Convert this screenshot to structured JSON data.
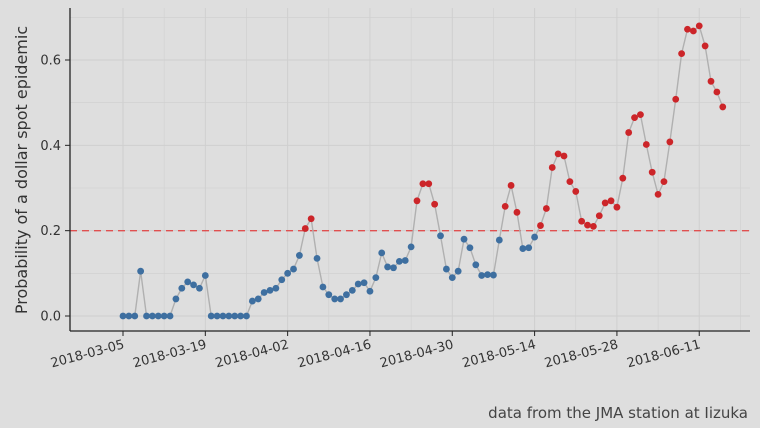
{
  "chart_data": {
    "type": "line",
    "title": "",
    "xlabel": "",
    "ylabel": "Probability of a dollar spot epidemic",
    "caption": "data from the JMA station at Iizuka",
    "start_date": "2018-03-05",
    "x_ticks": [
      "2018-03-05",
      "2018-03-19",
      "2018-04-02",
      "2018-04-16",
      "2018-04-30",
      "2018-05-14",
      "2018-05-28",
      "2018-06-11"
    ],
    "y_ticks": [
      0.0,
      0.2,
      0.4,
      0.6
    ],
    "y_tick_labels": [
      "0.0",
      "0.2",
      "0.4",
      "0.6"
    ],
    "ylim": [
      -0.03,
      0.72
    ],
    "threshold": 0.2,
    "colors": {
      "above": "#cc2529",
      "below": "#3e6fa0",
      "line": "#b0b0b0",
      "threshold": "#e05050",
      "grid": "#cfcfcf"
    },
    "values": [
      0.0,
      0.0,
      0.0,
      0.105,
      0.0,
      0.0,
      0.0,
      0.0,
      0.0,
      0.04,
      0.065,
      0.08,
      0.073,
      0.065,
      0.095,
      0.0,
      0.0,
      0.0,
      0.0,
      0.0,
      0.0,
      0.0,
      0.035,
      0.04,
      0.055,
      0.06,
      0.065,
      0.085,
      0.1,
      0.11,
      0.142,
      0.205,
      0.228,
      0.135,
      0.068,
      0.05,
      0.04,
      0.04,
      0.05,
      0.06,
      0.075,
      0.078,
      0.058,
      0.09,
      0.148,
      0.115,
      0.113,
      0.128,
      0.13,
      0.162,
      0.27,
      0.31,
      0.31,
      0.262,
      0.188,
      0.11,
      0.09,
      0.105,
      0.18,
      0.16,
      0.12,
      0.095,
      0.097,
      0.096,
      0.178,
      0.257,
      0.306,
      0.243,
      0.158,
      0.16,
      0.185,
      0.212,
      0.252,
      0.348,
      0.38,
      0.375,
      0.315,
      0.292,
      0.222,
      0.213,
      0.21,
      0.235,
      0.265,
      0.27,
      0.255,
      0.323,
      0.43,
      0.465,
      0.472,
      0.402,
      0.337,
      0.285,
      0.315,
      0.408,
      0.508,
      0.615,
      0.672,
      0.668,
      0.68,
      0.633,
      0.55,
      0.525,
      0.49
    ]
  }
}
